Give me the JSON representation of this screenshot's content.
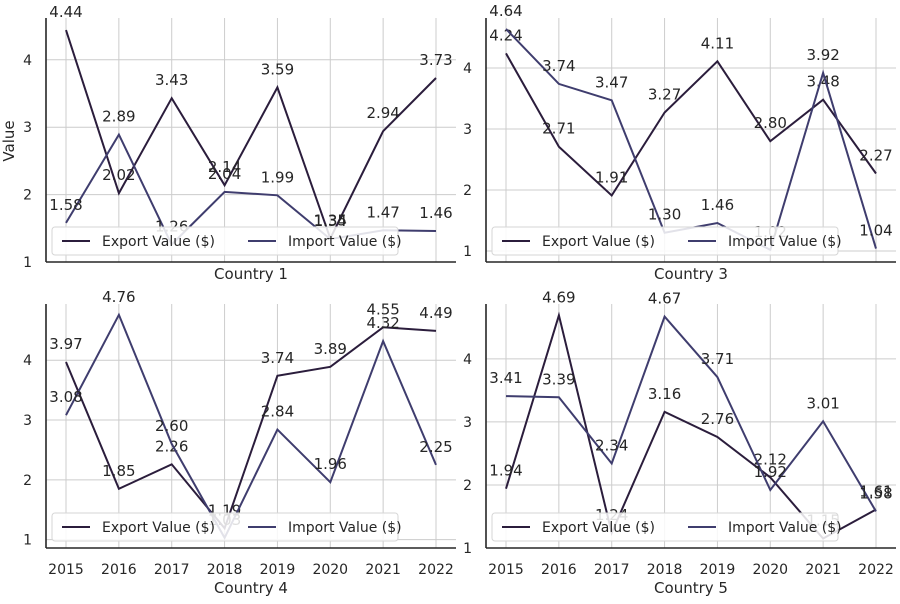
{
  "figure": {
    "y_axis_label": "Value",
    "colors": {
      "export": "#2b1d3c",
      "import": "#3f3d6e"
    }
  },
  "chart_data": [
    {
      "type": "line",
      "xlabel": "Country 1",
      "ylabel": "Value",
      "x": [
        2015,
        2016,
        2017,
        2018,
        2019,
        2020,
        2021,
        2022
      ],
      "ylim": [
        1,
        4.62
      ],
      "yticks": [
        1,
        2,
        3,
        4
      ],
      "grid": true,
      "legend": "lower-left",
      "series": [
        {
          "name": "Export Value ($)",
          "values": [
            4.44,
            2.02,
            3.43,
            2.14,
            3.59,
            1.35,
            2.94,
            3.73
          ]
        },
        {
          "name": "Import Value ($)",
          "values": [
            1.58,
            2.89,
            1.26,
            2.04,
            1.99,
            1.34,
            1.47,
            1.46
          ]
        }
      ]
    },
    {
      "type": "line",
      "xlabel": "Country 3",
      "ylabel": "",
      "x": [
        2015,
        2016,
        2017,
        2018,
        2019,
        2020,
        2021,
        2022
      ],
      "ylim": [
        0.82,
        4.82
      ],
      "yticks": [
        1,
        2,
        3,
        4
      ],
      "grid": true,
      "legend": "lower-left",
      "series": [
        {
          "name": "Export Value ($)",
          "values": [
            4.24,
            2.71,
            1.91,
            3.27,
            4.11,
            2.8,
            3.48,
            2.27
          ]
        },
        {
          "name": "Import Value ($)",
          "values": [
            4.64,
            3.74,
            3.47,
            1.3,
            1.46,
            1.02,
            3.92,
            1.04
          ]
        }
      ]
    },
    {
      "type": "line",
      "xlabel": "Country 4",
      "ylabel": "",
      "x": [
        2015,
        2016,
        2017,
        2018,
        2019,
        2020,
        2021,
        2022
      ],
      "ylim": [
        0.86,
        4.94
      ],
      "yticks": [
        1,
        2,
        3,
        4
      ],
      "grid": true,
      "legend": "lower-left",
      "series": [
        {
          "name": "Export Value ($)",
          "values": [
            3.97,
            1.85,
            2.26,
            1.19,
            3.74,
            3.89,
            4.55,
            4.49
          ]
        },
        {
          "name": "Import Value ($)",
          "values": [
            3.08,
            4.76,
            2.6,
            1.03,
            2.84,
            1.96,
            4.32,
            2.25
          ]
        }
      ]
    },
    {
      "type": "line",
      "xlabel": "Country 5",
      "ylabel": "",
      "x": [
        2015,
        2016,
        2017,
        2018,
        2019,
        2020,
        2021,
        2022
      ],
      "ylim": [
        1,
        4.87
      ],
      "yticks": [
        1,
        2,
        3,
        4
      ],
      "grid": true,
      "legend": "lower-left",
      "series": [
        {
          "name": "Export Value ($)",
          "values": [
            1.94,
            4.69,
            1.24,
            3.16,
            2.76,
            2.12,
            1.15,
            1.61
          ]
        },
        {
          "name": "Import Value ($)",
          "values": [
            3.41,
            3.39,
            2.34,
            4.67,
            3.71,
            1.92,
            3.01,
            1.58
          ]
        }
      ]
    }
  ]
}
